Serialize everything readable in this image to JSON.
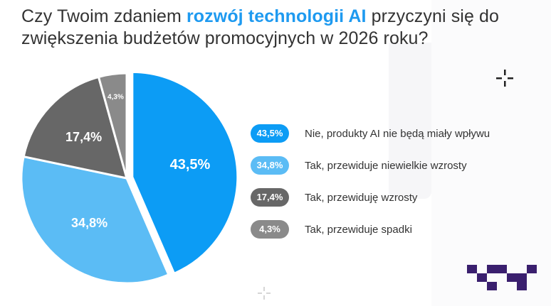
{
  "title": {
    "before": "Czy Twoim zdaniem ",
    "highlight": "rozwój technologii AI",
    "after": " przyczyni się do zwiększenia budżetów promocyjnych w 2026 roku?"
  },
  "colors": {
    "highlight": "#1e9af0",
    "text": "#333333"
  },
  "chart_data": {
    "type": "pie",
    "slices": [
      {
        "label": "Nie, produkty AI nie będą miały wpływu",
        "value": 43.5,
        "display": "43,5%",
        "color": "#0c9cf5"
      },
      {
        "label": "Tak, przewiduje niewielkie wzrosty",
        "value": 34.8,
        "display": "34,8%",
        "color": "#5bbcf5"
      },
      {
        "label": "Tak, przewiduję wzrosty",
        "value": 17.4,
        "display": "17,4%",
        "color": "#676767"
      },
      {
        "label": "Tak, przewiduje spadki",
        "value": 4.3,
        "display": "4,3%",
        "color": "#8a8a8a"
      }
    ],
    "legend_position": "right"
  },
  "icons": [
    "plus-icon",
    "logo-mark"
  ]
}
